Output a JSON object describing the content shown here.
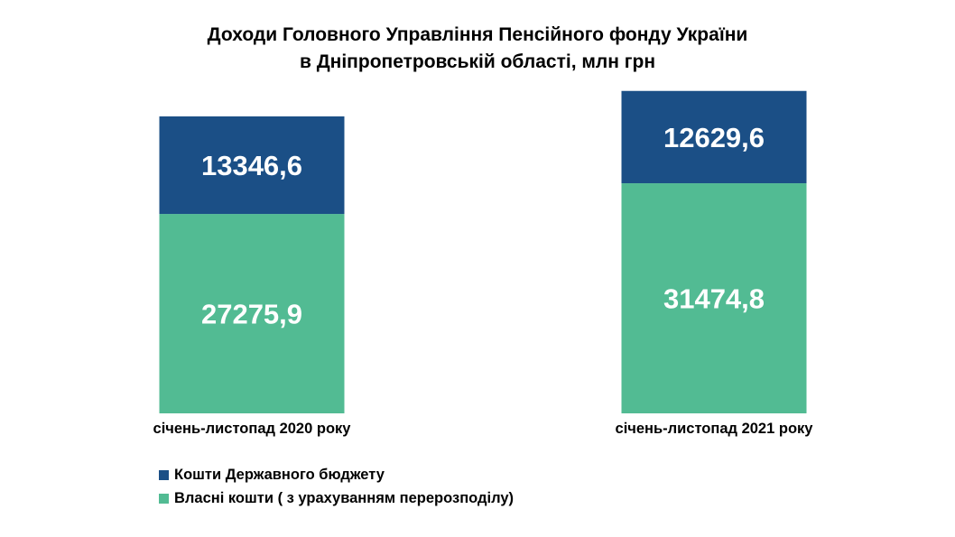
{
  "title": {
    "line1": "Доходи Головного Управління Пенсійного фонду України",
    "line2": "в Дніпропетровській області, млн грн"
  },
  "colors": {
    "state_budget": "#1b4f86",
    "own_funds": "#52bb93",
    "label_text": "#ffffff"
  },
  "chart_data": {
    "type": "bar",
    "stacked": true,
    "categories": [
      "січень-листопад 2020 року",
      "січень-листопад 2021 року"
    ],
    "series": [
      {
        "name": "Власні кошти ( з урахуванням перерозподілу)",
        "values": [
          27275.9,
          31474.8
        ],
        "labels": [
          "27275,9",
          "31474,8"
        ],
        "color": "#52bb93"
      },
      {
        "name": "Кошти Державного бюджету",
        "values": [
          13346.6,
          12629.6
        ],
        "labels": [
          "13346,6",
          "12629,6"
        ],
        "color": "#1b4f86"
      }
    ],
    "legend_position": "bottom-left",
    "grid": false,
    "y_axis_visible": false
  },
  "legend": [
    {
      "label": "Кошти Державного бюджету",
      "color": "#1b4f86"
    },
    {
      "label": "Власні кошти ( з урахуванням перерозподілу)",
      "color": "#52bb93"
    }
  ]
}
